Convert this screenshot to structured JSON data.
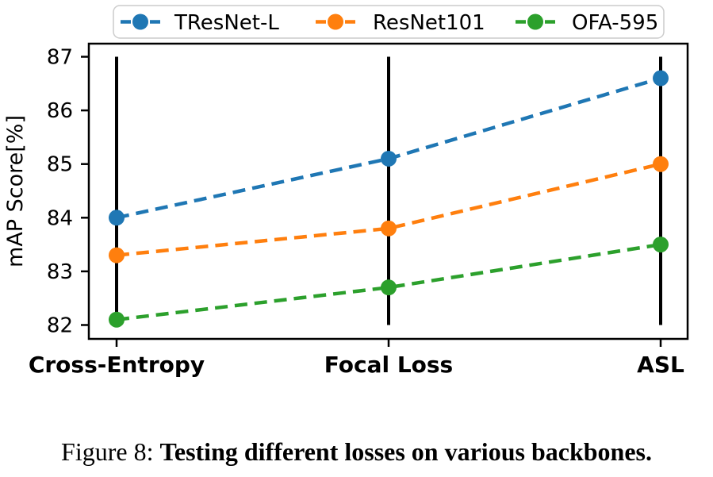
{
  "chart_data": {
    "type": "line",
    "categories": [
      "Cross-Entropy",
      "Focal Loss",
      "ASL"
    ],
    "series": [
      {
        "name": "TResNet-L",
        "color": "#1f77b4",
        "values": [
          84.0,
          85.1,
          86.6
        ]
      },
      {
        "name": "ResNet101",
        "color": "#ff7f0e",
        "values": [
          83.3,
          83.8,
          85.0
        ]
      },
      {
        "name": "OFA-595",
        "color": "#2ca02c",
        "values": [
          82.1,
          82.7,
          83.5
        ]
      }
    ],
    "title": "",
    "xlabel": "",
    "ylabel": "mAP Score[%]",
    "ylim": [
      82,
      87
    ],
    "yticks": [
      82,
      83,
      84,
      85,
      86,
      87
    ],
    "line_style": "dashed",
    "marker": "circle",
    "grid": false,
    "legend_position": "top-outside",
    "vlines": {
      "at_categories": [
        "Cross-Entropy",
        "Focal Loss",
        "ASL"
      ],
      "span": [
        82,
        87
      ],
      "color": "#000000"
    },
    "axis_color": "#000000",
    "legend_border_color": "#cccccc"
  },
  "caption": {
    "prefix": "Figure 8: ",
    "title": "Testing different losses on various backbones."
  }
}
